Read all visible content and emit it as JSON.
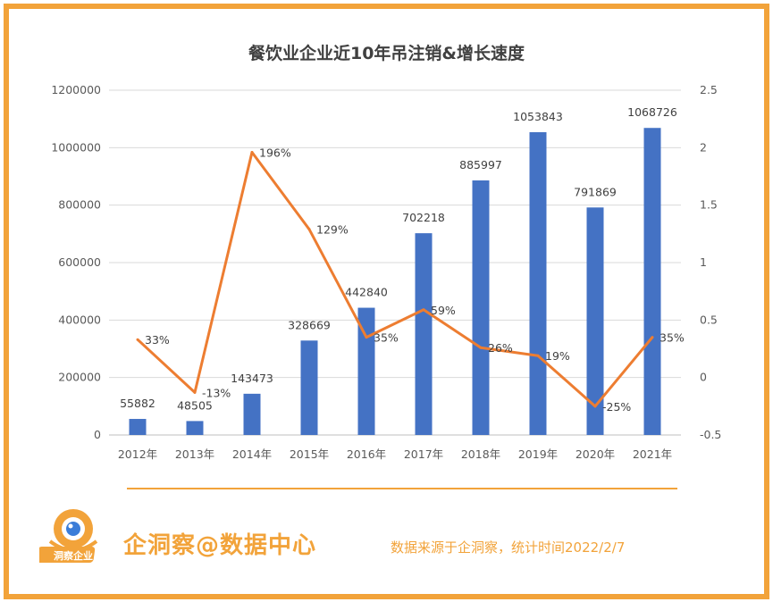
{
  "chart_data": {
    "type": "bar",
    "title": "餐饮业企业近10年吊注销&增长速度",
    "categories": [
      "2012年",
      "2013年",
      "2014年",
      "2015年",
      "2016年",
      "2017年",
      "2018年",
      "2019年",
      "2020年",
      "2021年"
    ],
    "series": [
      {
        "kind": "bar",
        "axis": "left",
        "color": "#4472C4",
        "values": [
          55882,
          48505,
          143473,
          328669,
          442840,
          702218,
          885997,
          1053843,
          791869,
          1068726
        ],
        "labels": [
          "55882",
          "48505",
          "143473",
          "328669",
          "442840",
          "702218",
          "885997",
          "1053843",
          "791869",
          "1068726"
        ]
      },
      {
        "kind": "line",
        "axis": "right",
        "color": "#ED7D31",
        "values": [
          0.33,
          -0.13,
          1.96,
          1.29,
          0.35,
          0.59,
          0.26,
          0.19,
          -0.25,
          0.35
        ],
        "labels": [
          "33%",
          "-13%",
          "196%",
          "129%",
          "35%",
          "59%",
          "26%",
          "19%",
          "-25%",
          "35%"
        ]
      }
    ],
    "y_left": {
      "min": 0,
      "max": 1200000,
      "ticks": [
        "1200000",
        "1000000",
        "800000",
        "600000",
        "400000",
        "200000",
        "0"
      ]
    },
    "y_right": {
      "min": -0.5,
      "max": 2.5,
      "ticks": [
        "2.5",
        "2",
        "1.5",
        "1",
        "0.5",
        "0",
        "-0.5"
      ]
    },
    "grid": true
  },
  "footer": {
    "brand": "企洞察@数据中心",
    "source": "数据来源于企洞察，统计时间2022/2/7",
    "logo_text": "洞察企业"
  },
  "colors": {
    "frame": "#F2A33A",
    "bar": "#4472C4",
    "line": "#ED7D31"
  }
}
